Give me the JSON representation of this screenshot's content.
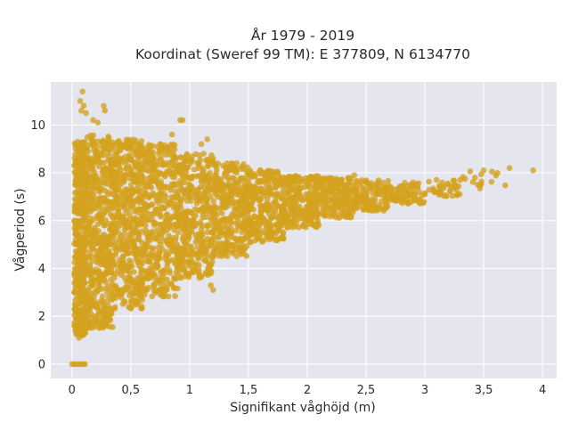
{
  "chart_data": {
    "type": "scatter",
    "title_lines": [
      "År 1979 - 2019",
      "Koordinat (Sweref 99 TM): E 377809, N 6134770"
    ],
    "xlabel": "Signifikant våghöjd (m)",
    "ylabel": "Vågperiod (s)",
    "xlim": [
      -0.18,
      4.12
    ],
    "ylim": [
      -0.6,
      11.8
    ],
    "x_ticks": [
      0,
      0.5,
      1,
      1.5,
      2,
      2.5,
      3,
      3.5,
      4
    ],
    "x_tick_labels": [
      "0",
      "0,5",
      "1",
      "1,5",
      "2",
      "2,5",
      "3",
      "3,5",
      "4"
    ],
    "y_ticks": [
      0,
      2,
      4,
      6,
      8,
      10
    ],
    "y_tick_labels": [
      "0",
      "2",
      "4",
      "6",
      "8",
      "10"
    ],
    "grid": true,
    "colors": {
      "marker": "#d4a21e",
      "plot_bg": "#e5e5ee",
      "grid": "#ffffff"
    },
    "points": [
      [
        0.07,
        11.0
      ],
      [
        0.09,
        11.4
      ],
      [
        0.08,
        10.6
      ],
      [
        0.1,
        10.8
      ],
      [
        0.12,
        10.5
      ],
      [
        0.28,
        10.6
      ],
      [
        0.27,
        10.8
      ],
      [
        0.22,
        10.1
      ],
      [
        0.18,
        10.2
      ],
      [
        0.92,
        10.2
      ],
      [
        0.94,
        10.2
      ],
      [
        0.6,
        9.0
      ],
      [
        0.75,
        9.2
      ],
      [
        0.85,
        9.6
      ],
      [
        1.1,
        9.2
      ],
      [
        1.15,
        9.4
      ],
      [
        1.2,
        8.6
      ],
      [
        1.4,
        8.4
      ],
      [
        1.6,
        8.1
      ],
      [
        1.8,
        7.8
      ],
      [
        2.0,
        7.6
      ],
      [
        2.4,
        7.9
      ],
      [
        2.6,
        7.6
      ],
      [
        2.9,
        7.6
      ],
      [
        3.1,
        7.7
      ],
      [
        3.3,
        7.7
      ],
      [
        3.5,
        8.1
      ],
      [
        3.57,
        8.05
      ],
      [
        3.72,
        8.2
      ],
      [
        3.92,
        8.1
      ],
      [
        3.45,
        7.5
      ],
      [
        3.2,
        7.5
      ],
      [
        2.8,
        7.2
      ],
      [
        2.85,
        6.9
      ],
      [
        3.0,
        7.1
      ],
      [
        2.5,
        7.3
      ],
      [
        2.3,
        7.0
      ],
      [
        2.1,
        6.7
      ],
      [
        1.9,
        6.4
      ],
      [
        1.7,
        6.1
      ],
      [
        1.5,
        5.8
      ],
      [
        1.3,
        5.4
      ],
      [
        1.1,
        5.0
      ],
      [
        1.0,
        4.5
      ],
      [
        0.9,
        4.0
      ],
      [
        0.75,
        3.6
      ],
      [
        0.6,
        3.1
      ],
      [
        0.45,
        2.6
      ],
      [
        0.3,
        2.3
      ],
      [
        0.2,
        2.0
      ],
      [
        0.12,
        1.5
      ],
      [
        0.08,
        1.2
      ],
      [
        0.06,
        1.1
      ],
      [
        0.1,
        1.3
      ],
      [
        1.2,
        3.1
      ],
      [
        1.18,
        3.3
      ],
      [
        0.55,
        3.0
      ],
      [
        0.0,
        0.0
      ],
      [
        0.02,
        0.0
      ],
      [
        0.04,
        0.0
      ],
      [
        0.06,
        0.0
      ],
      [
        0.08,
        0.0
      ],
      [
        0.1,
        0.0
      ],
      [
        0.11,
        0.0
      ],
      [
        0.03,
        8.5
      ],
      [
        0.02,
        8.3
      ],
      [
        0.03,
        7.5
      ],
      [
        0.02,
        6.0
      ],
      [
        0.03,
        4.5
      ],
      [
        0.02,
        3.0
      ],
      [
        0.03,
        2.2
      ],
      [
        0.02,
        1.6
      ],
      [
        0.04,
        1.3
      ],
      [
        0.03,
        9.0
      ],
      [
        0.05,
        9.3
      ]
    ],
    "density_bands": [
      {
        "xmin": 0.02,
        "xmax": 0.12,
        "ylo": 1.2,
        "yhi": 9.3,
        "n": 420
      },
      {
        "xmin": 0.12,
        "xmax": 0.35,
        "ylo": 1.5,
        "yhi": 9.6,
        "n": 520
      },
      {
        "xmin": 0.35,
        "xmax": 0.6,
        "ylo": 2.3,
        "yhi": 9.4,
        "n": 480
      },
      {
        "xmin": 0.6,
        "xmax": 0.9,
        "ylo": 2.8,
        "yhi": 9.2,
        "n": 420
      },
      {
        "xmin": 0.9,
        "xmax": 1.2,
        "ylo": 3.6,
        "yhi": 8.8,
        "n": 380
      },
      {
        "xmin": 1.2,
        "xmax": 1.5,
        "ylo": 4.5,
        "yhi": 8.4,
        "n": 330
      },
      {
        "xmin": 1.5,
        "xmax": 1.8,
        "ylo": 5.1,
        "yhi": 8.1,
        "n": 280
      },
      {
        "xmin": 1.8,
        "xmax": 2.1,
        "ylo": 5.7,
        "yhi": 7.9,
        "n": 230
      },
      {
        "xmin": 2.1,
        "xmax": 2.4,
        "ylo": 6.1,
        "yhi": 7.8,
        "n": 180
      },
      {
        "xmin": 2.4,
        "xmax": 2.7,
        "ylo": 6.4,
        "yhi": 7.7,
        "n": 130
      },
      {
        "xmin": 2.7,
        "xmax": 3.0,
        "ylo": 6.7,
        "yhi": 7.6,
        "n": 80
      },
      {
        "xmin": 3.0,
        "xmax": 3.3,
        "ylo": 7.0,
        "yhi": 7.7,
        "n": 35
      },
      {
        "xmin": 3.3,
        "xmax": 3.7,
        "ylo": 7.3,
        "yhi": 8.1,
        "n": 14
      }
    ]
  }
}
